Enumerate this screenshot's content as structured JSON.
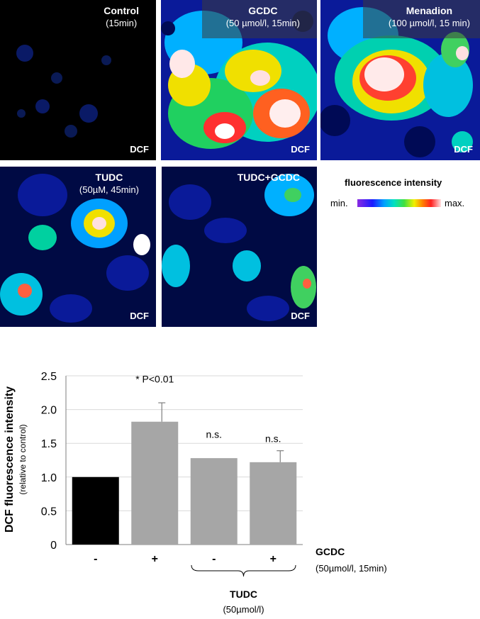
{
  "panels": {
    "control": {
      "title": "Control",
      "subtitle": "(15min)",
      "tag": "DCF"
    },
    "gcdc": {
      "title": "GCDC",
      "subtitle": "(50 µmol/l, 15min)",
      "tag": "DCF"
    },
    "menadion": {
      "title": "Menadion",
      "subtitle": "(100 µmol/l, 15 min)",
      "tag": "DCF"
    },
    "tudc": {
      "title": "TUDC",
      "subtitle": "(50µM, 45min)",
      "tag": "DCF"
    },
    "tudc_gcdc": {
      "title": "TUDC+GCDC",
      "subtitle": "",
      "tag": "DCF"
    }
  },
  "legend": {
    "title": "fluorescence intensity",
    "min": "min.",
    "max": "max."
  },
  "chart_data": {
    "type": "bar",
    "ylabel": "DCF fluorescence intensity",
    "ylabel_sub": "(relative to control)",
    "ylim": [
      0,
      2.5
    ],
    "ticks": [
      "0",
      "0.5",
      "1.0",
      "1.5",
      "2.0",
      "2.5"
    ],
    "grid": true,
    "categories": [
      "-",
      "+",
      "-",
      "+"
    ],
    "values": [
      1.0,
      1.82,
      1.28,
      1.22
    ],
    "errors": [
      0.0,
      0.28,
      0.0,
      0.17
    ],
    "colors": [
      "#000000",
      "#a6a6a6",
      "#a6a6a6",
      "#a6a6a6"
    ],
    "annotations": [
      "",
      "* P<0.01",
      "n.s.",
      "n.s."
    ],
    "gcdc_row_label": "GCDC",
    "gcdc_row_sub": "(50µmol/l, 15min)",
    "tudc_label": "TUDC",
    "tudc_sub": "(50µmol/l)"
  }
}
